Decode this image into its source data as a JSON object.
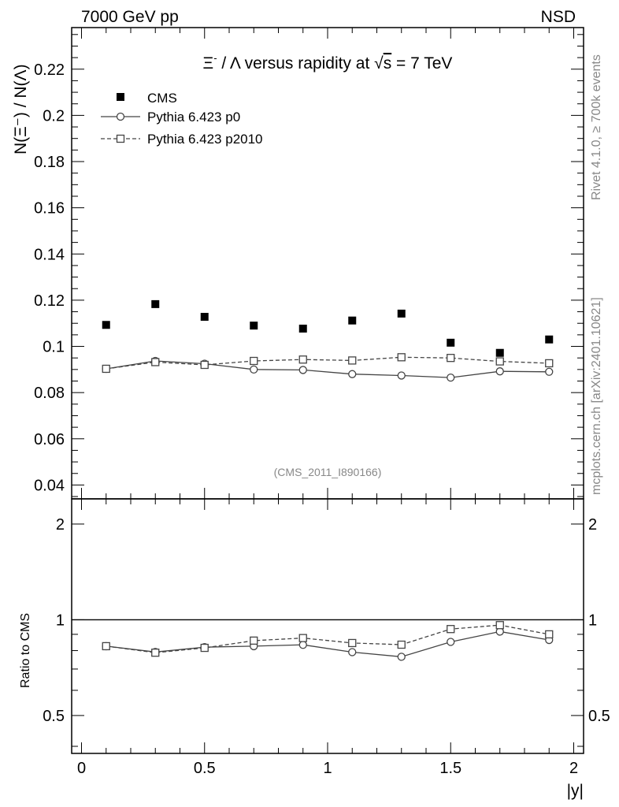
{
  "header": {
    "left_label": "7000 GeV pp",
    "right_label": "NSD"
  },
  "side_labels": {
    "rivet": "Rivet 4.1.0, ≥ 700k events",
    "mcplots": "mcplots.cern.ch [arXiv:2401.10621]"
  },
  "chart_data": {
    "type": "scatter",
    "title_prefix": "Ξ",
    "title_sup": "-",
    "title_mid": " / Λ versus rapidity at ",
    "title_sqrt": "√",
    "title_s": "s",
    "title_suffix": " = 7 TeV",
    "ylabel": "N(Ξ⁻)  / N(Λ)",
    "xlabel": "|y|",
    "ratio_ylabel": "Ratio to CMS",
    "watermark": "(CMS_2011_I890166)",
    "xlim": [
      -0.04,
      2.04
    ],
    "ylim": [
      0.034,
      0.238
    ],
    "ratio_ylim": [
      0.38,
      2.4
    ],
    "x_ticks": [
      "0",
      "0.5",
      "1",
      "1.5",
      "2"
    ],
    "x_tick_values": [
      0,
      0.5,
      1,
      1.5,
      2
    ],
    "y_ticks": [
      "0.04",
      "0.06",
      "0.08",
      "0.1",
      "0.12",
      "0.14",
      "0.16",
      "0.18",
      "0.2",
      "0.22"
    ],
    "y_tick_values": [
      0.04,
      0.06,
      0.08,
      0.1,
      0.12,
      0.14,
      0.16,
      0.18,
      0.2,
      0.22
    ],
    "ratio_ticks": [
      "0.5",
      "1",
      "2"
    ],
    "ratio_tick_values": [
      0.5,
      1,
      2
    ],
    "x": [
      0.1,
      0.3,
      0.5,
      0.7,
      0.9,
      1.1,
      1.3,
      1.5,
      1.7,
      1.9
    ],
    "series": [
      {
        "name": "CMS",
        "marker": "filled-square",
        "values": [
          0.1093,
          0.1183,
          0.1128,
          0.109,
          0.1077,
          0.1112,
          0.1142,
          0.1016,
          0.0972,
          0.103
        ]
      },
      {
        "name": "Pythia 6.423 p0",
        "marker": "open-circle",
        "line": "solid",
        "values": [
          0.0903,
          0.0937,
          0.0925,
          0.09,
          0.0898,
          0.088,
          0.0874,
          0.0865,
          0.0892,
          0.089
        ],
        "errors": [
          0.0015,
          0.0015,
          0.0015,
          0.0015,
          0.0015,
          0.0015,
          0.0015,
          0.0015,
          0.0015,
          0.0015
        ],
        "ratio": [
          0.826,
          0.792,
          0.82,
          0.826,
          0.834,
          0.791,
          0.765,
          0.852,
          0.918,
          0.864
        ]
      },
      {
        "name": "Pythia 6.423 p2010",
        "marker": "open-square",
        "line": "dashed",
        "values": [
          0.0903,
          0.0932,
          0.092,
          0.0937,
          0.0943,
          0.0939,
          0.0953,
          0.095,
          0.0935,
          0.0927
        ],
        "errors": [
          0.001,
          0.001,
          0.001,
          0.001,
          0.001,
          0.001,
          0.001,
          0.001,
          0.001,
          0.001
        ],
        "ratio": [
          0.826,
          0.788,
          0.816,
          0.86,
          0.876,
          0.845,
          0.835,
          0.935,
          0.962,
          0.9
        ]
      }
    ],
    "colors": {
      "axis": "#000000",
      "data": "#000000",
      "mc": "#444444",
      "faint": "#888888"
    }
  }
}
